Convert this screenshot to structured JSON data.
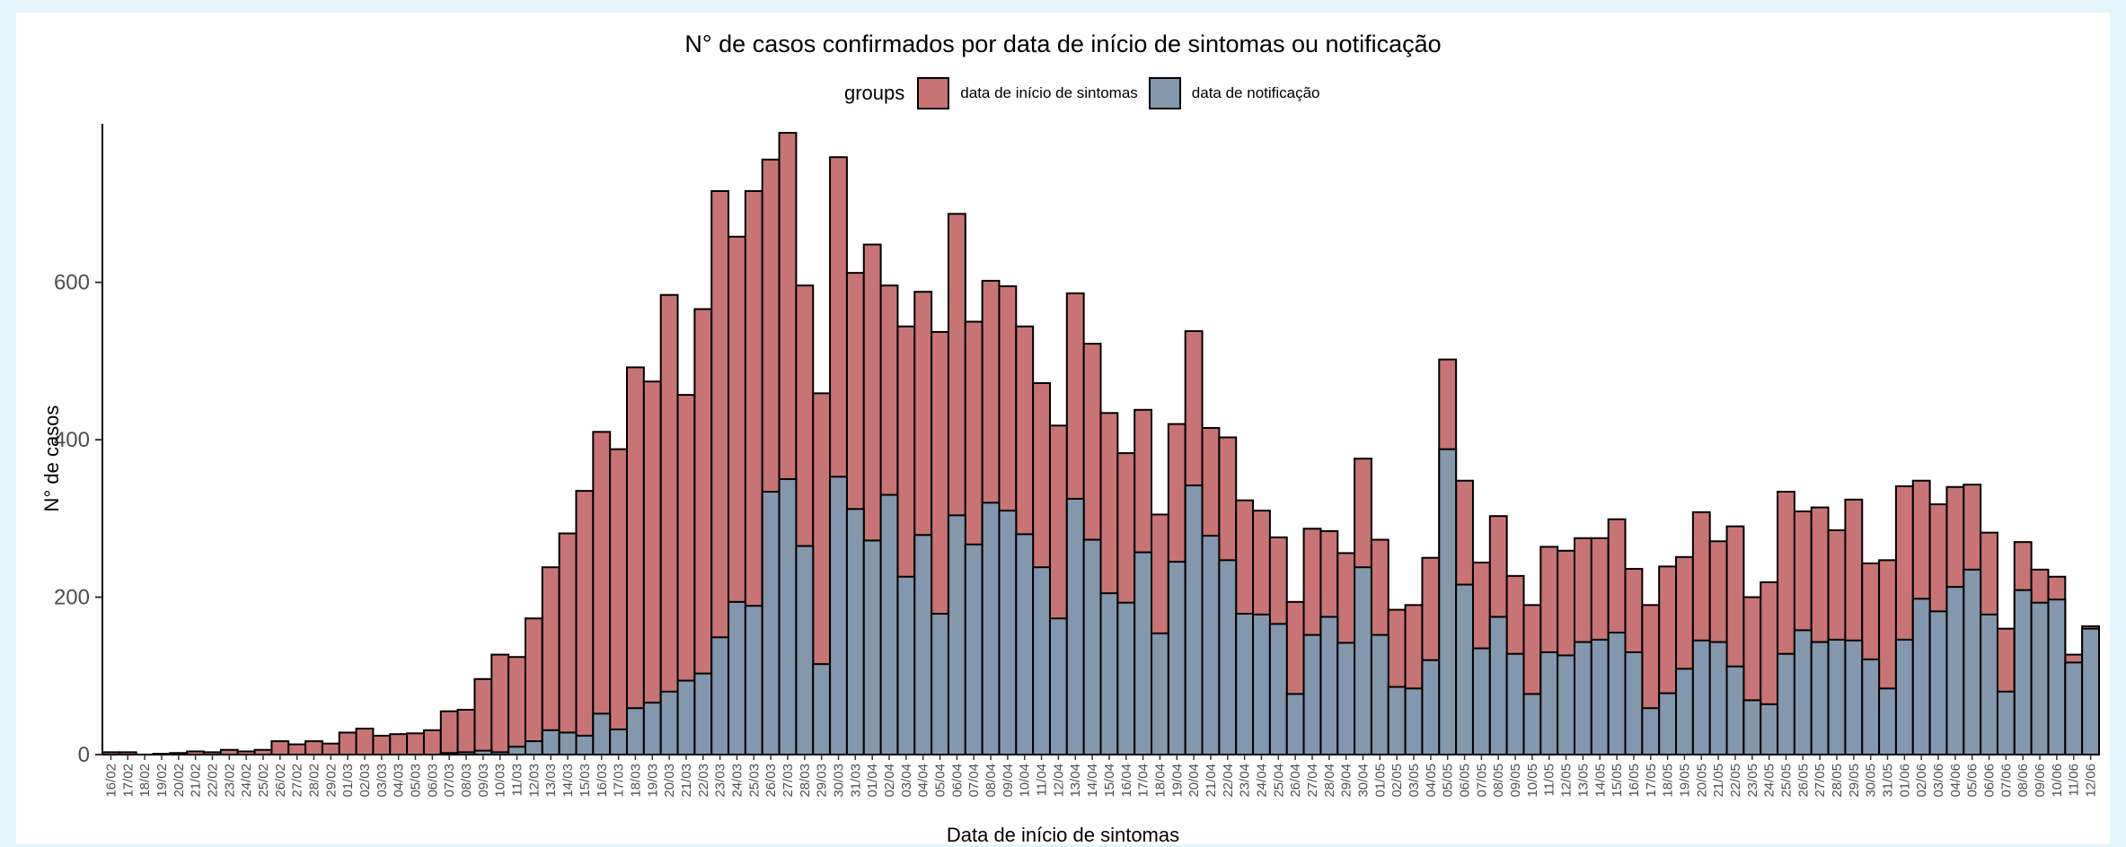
{
  "chart_data": {
    "type": "bar",
    "stacking": "overlay",
    "title": "N° de casos confirmados por data de início de sintomas ou notificação",
    "xlabel": "Data de início de sintomas",
    "ylabel": "N° de casos",
    "legend": {
      "title": "groups",
      "placement": "top"
    },
    "ylim": [
      0,
      790
    ],
    "yticks": [
      0,
      200,
      400,
      600
    ],
    "grid": false,
    "categories": [
      "16/02",
      "17/02",
      "18/02",
      "19/02",
      "20/02",
      "21/02",
      "22/02",
      "23/02",
      "24/02",
      "25/02",
      "26/02",
      "27/02",
      "28/02",
      "29/02",
      "01/03",
      "02/03",
      "03/03",
      "04/03",
      "05/03",
      "06/03",
      "07/03",
      "08/03",
      "09/03",
      "10/03",
      "11/03",
      "12/03",
      "13/03",
      "14/03",
      "15/03",
      "16/03",
      "17/03",
      "18/03",
      "19/03",
      "20/03",
      "21/03",
      "22/03",
      "23/03",
      "24/03",
      "25/03",
      "26/03",
      "27/03",
      "28/03",
      "29/03",
      "30/03",
      "31/03",
      "01/04",
      "02/04",
      "03/04",
      "04/04",
      "05/04",
      "06/04",
      "07/04",
      "08/04",
      "09/04",
      "10/04",
      "11/04",
      "12/04",
      "13/04",
      "14/04",
      "15/04",
      "16/04",
      "17/04",
      "18/04",
      "19/04",
      "20/04",
      "21/04",
      "22/04",
      "23/04",
      "24/04",
      "25/04",
      "26/04",
      "27/04",
      "28/04",
      "29/04",
      "30/04",
      "01/05",
      "02/05",
      "03/05",
      "04/05",
      "05/05",
      "06/05",
      "07/05",
      "08/05",
      "09/05",
      "10/05",
      "11/05",
      "12/05",
      "13/05",
      "14/05",
      "15/05",
      "16/05",
      "17/05",
      "18/05",
      "19/05",
      "20/05",
      "21/05",
      "22/05",
      "23/05",
      "24/05",
      "25/05",
      "26/05",
      "27/05",
      "28/05",
      "29/05",
      "30/05",
      "31/05",
      "01/06",
      "02/06",
      "03/06",
      "04/06",
      "05/06",
      "06/06",
      "07/06",
      "08/06",
      "09/06",
      "10/06",
      "11/06",
      "12/06"
    ],
    "series": [
      {
        "name": "data de início de sintomas",
        "color": "#c97474",
        "values": [
          3,
          3,
          0,
          1,
          2,
          4,
          3,
          6,
          4,
          6,
          17,
          13,
          17,
          14,
          28,
          33,
          24,
          26,
          27,
          31,
          55,
          57,
          96,
          127,
          124,
          173,
          238,
          281,
          335,
          410,
          388,
          492,
          474,
          584,
          457,
          566,
          716,
          658,
          716,
          756,
          790,
          596,
          459,
          759,
          612,
          648,
          596,
          544,
          588,
          537,
          687,
          550,
          602,
          595,
          544,
          472,
          418,
          586,
          522,
          434,
          383,
          438,
          305,
          420,
          538,
          415,
          403,
          323,
          310,
          276,
          194,
          287,
          284,
          256,
          376,
          273,
          184,
          190,
          250,
          502,
          348,
          244,
          303,
          227,
          190,
          264,
          259,
          275,
          275,
          299,
          236,
          190,
          239,
          251,
          308,
          271,
          290,
          200,
          219,
          334,
          309,
          314,
          285,
          324,
          243,
          247,
          341,
          348,
          318,
          340,
          343,
          282,
          160,
          270,
          235,
          226,
          127,
          163
        ]
      },
      {
        "name": "data de notificação",
        "color": "#8397ad",
        "values": [
          0,
          0,
          0,
          0,
          0,
          0,
          0,
          0,
          0,
          0,
          0,
          0,
          0,
          0,
          0,
          0,
          0,
          0,
          0,
          0,
          2,
          3,
          5,
          3,
          10,
          17,
          31,
          28,
          24,
          52,
          32,
          59,
          66,
          80,
          94,
          103,
          149,
          194,
          189,
          334,
          350,
          265,
          115,
          353,
          312,
          272,
          330,
          226,
          279,
          179,
          304,
          267,
          320,
          310,
          280,
          238,
          173,
          325,
          273,
          205,
          193,
          257,
          154,
          245,
          342,
          278,
          247,
          179,
          178,
          166,
          77,
          152,
          175,
          142,
          238,
          152,
          86,
          84,
          120,
          388,
          216,
          135,
          175,
          128,
          77,
          130,
          126,
          143,
          146,
          155,
          130,
          59,
          78,
          109,
          145,
          143,
          112,
          69,
          64,
          128,
          158,
          143,
          146,
          145,
          121,
          84,
          146,
          198,
          182,
          213,
          235,
          178,
          80,
          209,
          193,
          197,
          117,
          160
        ]
      }
    ]
  }
}
